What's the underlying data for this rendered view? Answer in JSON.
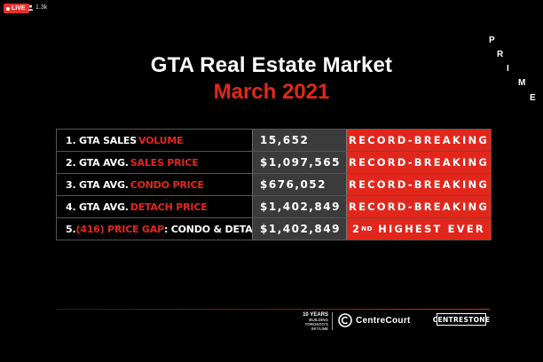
{
  "overlay": {
    "live_label": "LIVE",
    "viewer_count": "1.3k"
  },
  "prime_logo": [
    "P",
    "R",
    "I",
    "M",
    "E"
  ],
  "title": "GTA Real Estate Market",
  "subtitle": "March 2021",
  "table": {
    "rows": [
      {
        "label_prefix": "1. GTA SALES ",
        "label_highlight": "VOLUME",
        "label_suffix": "",
        "value": "15,652",
        "status": "RECORD-BREAKING"
      },
      {
        "label_prefix": "2. GTA AVG. ",
        "label_highlight": "SALES PRICE",
        "label_suffix": "",
        "value": "$1,097,565",
        "status": "RECORD-BREAKING"
      },
      {
        "label_prefix": "3. GTA AVG. ",
        "label_highlight": "CONDO PRICE",
        "label_suffix": "",
        "value": "$676,052",
        "status": "RECORD-BREAKING"
      },
      {
        "label_prefix": "4. GTA AVG. ",
        "label_highlight": "DETACH PRICE",
        "label_suffix": "",
        "value": "$1,402,849",
        "status": "RECORD-BREAKING"
      },
      {
        "label_prefix": "5. ",
        "label_highlight": "(416) PRICE GAP",
        "label_suffix": ": CONDO & DETACH",
        "value": "$1,402,849",
        "status_number": "2",
        "status_sup": "ND",
        "status_rest": " HIGHEST EVER"
      }
    ]
  },
  "footer": {
    "years_line1": "10 YEARS",
    "years_line2": "BUILDING",
    "years_line3": "TORONTO'S",
    "years_line4": "SKYLINE",
    "brand_centrecourt": "CentreCourt",
    "brand_centrestone": "CENTRESTONE"
  },
  "colors": {
    "accent_red": "#e1271c",
    "value_bg": "#3b3b3b",
    "background": "#000000"
  },
  "icons": [
    "user-icon",
    "centrecourt-logo-icon"
  ]
}
